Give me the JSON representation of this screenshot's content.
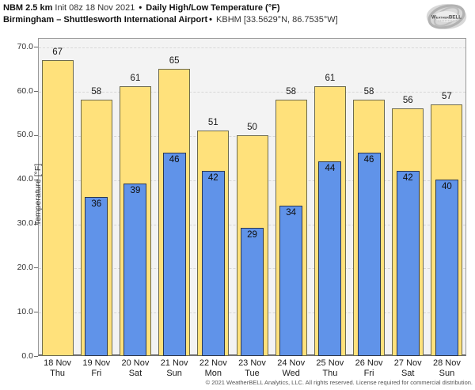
{
  "header": {
    "title_model": "NBM 2.5 km",
    "title_init": " Init 08z 18 Nov 2021 ",
    "title_sep": "•",
    "title_main": " Daily High/Low Temperature (°F)",
    "subtitle_station": "Birmingham – Shuttlesworth International Airport",
    "subtitle_sep": "•",
    "subtitle_code": " KBHM [33.5629°N, 86.7535°W]",
    "logo_text": "WeatherBELL"
  },
  "chart_data": {
    "type": "bar",
    "title": "Daily High/Low Temperature (°F)",
    "categories": [
      "18 Nov",
      "19 Nov",
      "20 Nov",
      "21 Nov",
      "22 Nov",
      "23 Nov",
      "24 Nov",
      "25 Nov",
      "26 Nov",
      "27 Nov",
      "28 Nov"
    ],
    "weekdays": [
      "Thu",
      "Fri",
      "Sat",
      "Sun",
      "Mon",
      "Tue",
      "Wed",
      "Thu",
      "Fri",
      "Sat",
      "Sun"
    ],
    "series": [
      {
        "name": "Daily High",
        "color": "#ffe17b",
        "values": [
          67,
          58,
          61,
          65,
          51,
          50,
          58,
          61,
          58,
          56,
          57
        ]
      },
      {
        "name": "Daily Low",
        "color": "#6093e9",
        "values": [
          null,
          36,
          39,
          46,
          42,
          29,
          34,
          44,
          46,
          42,
          40
        ]
      }
    ],
    "ylabel": "Temperature [°F]",
    "ylim": [
      0,
      72
    ],
    "yticks": [
      0,
      10,
      20,
      30,
      40,
      50,
      60,
      70
    ],
    "ytick_labels": [
      "0.0",
      "10.0",
      "20.0",
      "30.0",
      "40.0",
      "50.0",
      "60.0",
      "70.0"
    ],
    "grid": "horizontal-dashed",
    "legend": "none",
    "plot_bg": "#f3f3f3",
    "high_color": "#ffe17b",
    "low_color": "#6093e9"
  },
  "footer": {
    "copyright": "© 2021 WeatherBELL Analytics, LLC. All rights reserved. License required for commercial distribution."
  }
}
